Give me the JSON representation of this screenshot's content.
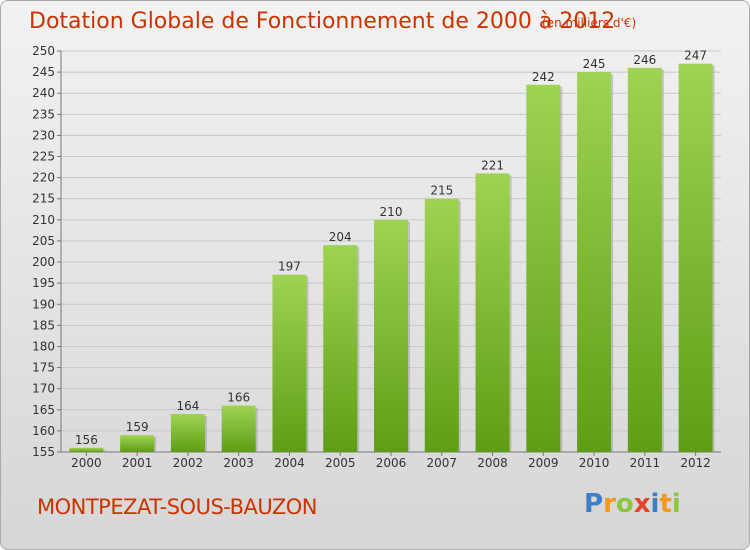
{
  "title": "Dotation Globale de Fonctionnement de 2000 à 2012",
  "subtitle": "(en milliers d'€)",
  "commune": "MONTPEZAT-SOUS-BAUZON",
  "logo": {
    "text": "Proxiti",
    "letters": [
      {
        "ch": "P",
        "color": "#3a7fc8"
      },
      {
        "ch": "r",
        "color": "#f39a1e"
      },
      {
        "ch": "o",
        "color": "#8cc63f"
      },
      {
        "ch": "x",
        "color": "#e8412c"
      },
      {
        "ch": "i",
        "color": "#3a7fc8"
      },
      {
        "ch": "t",
        "color": "#f39a1e"
      },
      {
        "ch": "i",
        "color": "#8cc63f"
      }
    ]
  },
  "colors": {
    "bar_light": "#9fd353",
    "bar_dark": "#5e9e14",
    "title": "#cc3300",
    "grid": "#c8c8c8"
  },
  "chart_data": {
    "type": "bar",
    "categories": [
      "2000",
      "2001",
      "2002",
      "2003",
      "2004",
      "2005",
      "2006",
      "2007",
      "2008",
      "2009",
      "2010",
      "2011",
      "2012"
    ],
    "values": [
      156,
      159,
      164,
      166,
      197,
      204,
      210,
      215,
      221,
      242,
      245,
      246,
      247
    ],
    "yticks": [
      155,
      160,
      165,
      170,
      175,
      180,
      185,
      190,
      195,
      200,
      205,
      210,
      215,
      220,
      225,
      230,
      235,
      240,
      245,
      250
    ],
    "ylim": [
      155,
      250
    ],
    "grid": true,
    "title": "Dotation Globale de Fonctionnement de 2000 à 2012",
    "ylabel": "(en milliers d'€)",
    "xlabel": ""
  }
}
